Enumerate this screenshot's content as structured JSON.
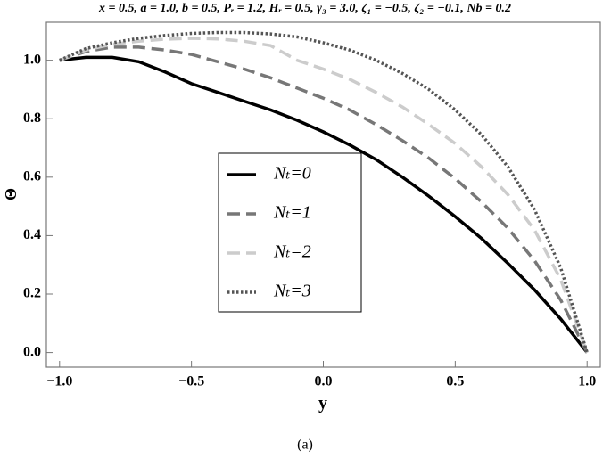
{
  "chart_data": {
    "type": "line",
    "title": "x = 0.5, a = 1.0, b = 0.5, Pᵣ = 1.2, Hᵣ = 0.5, γ₃ = 3.0, ζ₁ = −0.5, ζ₂ = −0.1, Nb = 0.2",
    "x_label": "y",
    "y_label": "Θ",
    "caption": "(a)",
    "x": [
      -1,
      -0.9,
      -0.8,
      -0.7,
      -0.6,
      -0.5,
      -0.4,
      -0.3,
      -0.2,
      -0.1,
      0,
      0.1,
      0.2,
      0.3,
      0.4,
      0.5,
      0.6,
      0.7,
      0.8,
      0.9,
      1
    ],
    "series": [
      {
        "name": "Nₜ=0",
        "color": "#000000",
        "dash": "solid",
        "values": [
          1.0,
          1.01,
          1.01,
          0.995,
          0.96,
          0.92,
          0.89,
          0.86,
          0.83,
          0.795,
          0.755,
          0.71,
          0.66,
          0.6,
          0.535,
          0.465,
          0.39,
          0.305,
          0.215,
          0.115,
          0.0
        ]
      },
      {
        "name": "Nₜ=1",
        "color": "#777777",
        "dash": "dashed",
        "values": [
          1.0,
          1.03,
          1.045,
          1.045,
          1.035,
          1.02,
          0.995,
          0.97,
          0.94,
          0.905,
          0.87,
          0.83,
          0.78,
          0.725,
          0.665,
          0.595,
          0.515,
          0.425,
          0.315,
          0.18,
          0.0
        ]
      },
      {
        "name": "Nₜ=2",
        "color": "#cccccc",
        "dash": "dashed",
        "values": [
          1.0,
          1.035,
          1.055,
          1.065,
          1.072,
          1.075,
          1.073,
          1.065,
          1.05,
          1.0,
          0.97,
          0.935,
          0.89,
          0.84,
          0.78,
          0.715,
          0.635,
          0.54,
          0.42,
          0.25,
          0.0
        ]
      },
      {
        "name": "Nₜ=3",
        "color": "#555555",
        "dash": "dotted",
        "values": [
          1.0,
          1.04,
          1.06,
          1.075,
          1.085,
          1.092,
          1.095,
          1.095,
          1.09,
          1.08,
          1.06,
          1.035,
          1.0,
          0.955,
          0.9,
          0.83,
          0.745,
          0.635,
          0.49,
          0.29,
          0.0
        ]
      }
    ],
    "xlim": [
      -1.05,
      1.05
    ],
    "ylim": [
      -0.05,
      1.13
    ],
    "xticks": [
      {
        "value": -1,
        "label": "−1.0"
      },
      {
        "value": -0.5,
        "label": "−0.5"
      },
      {
        "value": 0,
        "label": "0.0"
      },
      0.5,
      {
        "value": 1,
        "label": "1.0"
      }
    ],
    "yticks": [
      {
        "value": 0,
        "label": "0.0"
      },
      0.2,
      0.4,
      0.6,
      0.8,
      {
        "value": 1,
        "label": "1.0"
      }
    ],
    "grid": false,
    "legend": "center"
  }
}
